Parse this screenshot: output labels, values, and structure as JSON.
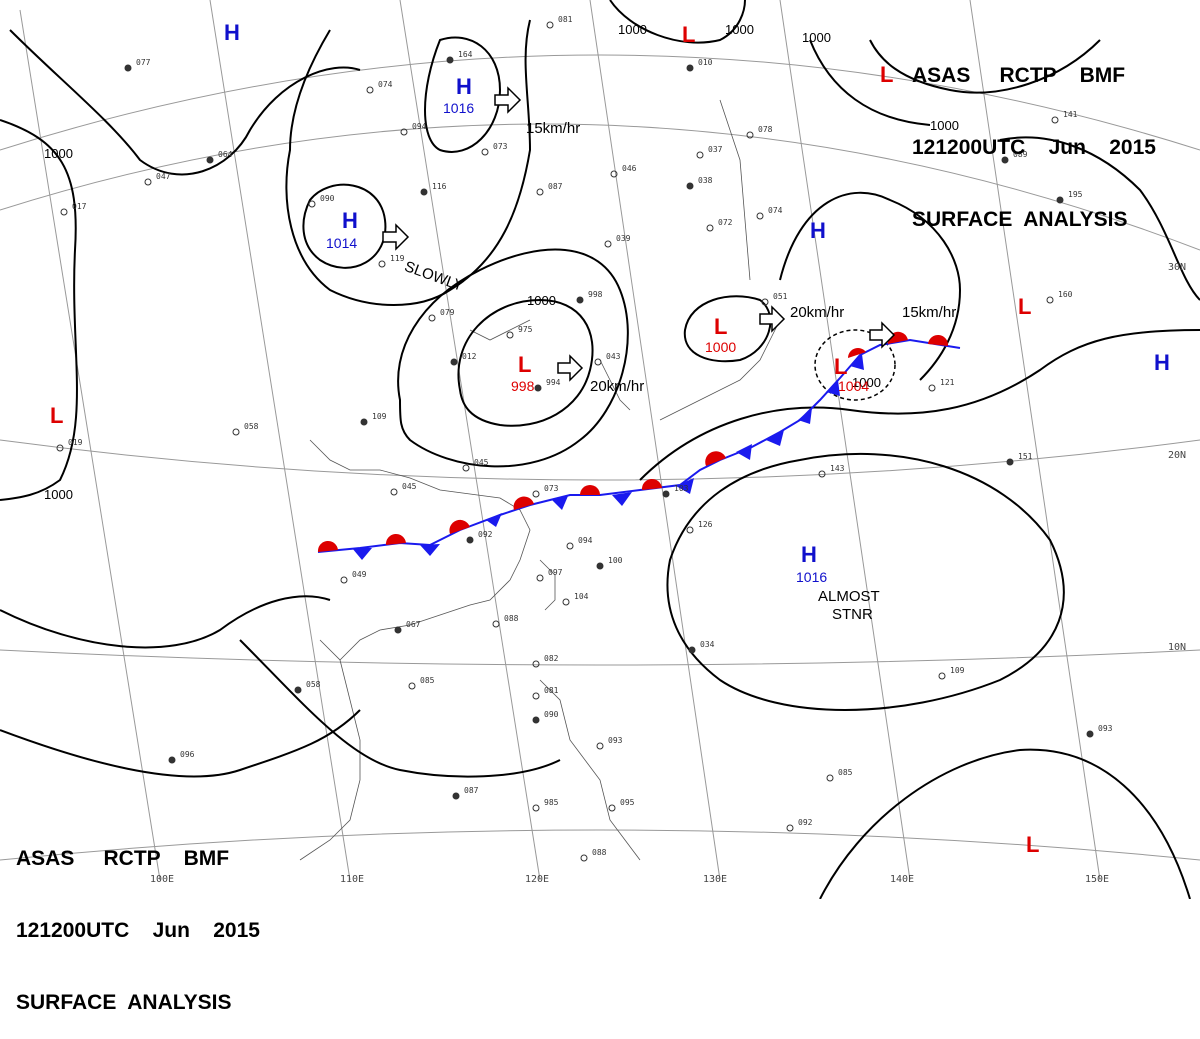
{
  "header_top": {
    "line1": "ASAS     RCTP    BMF",
    "line2": "121200UTC    Jun    2015",
    "line3": "SURFACE  ANALYSIS"
  },
  "header_bottom": {
    "line1": "ASAS     RCTP    BMF",
    "line2": "121200UTC    Jun    2015",
    "line3": "SURFACE  ANALYSIS"
  },
  "colors": {
    "high": "#1010cc",
    "low": "#dd0000",
    "cold_front": "#1a1aee",
    "warm_front": "#dd0000",
    "isobar": "#000000",
    "grid": "#888888",
    "coast": "#555555"
  },
  "pressure_centers": [
    {
      "type": "H",
      "value": ""
    },
    {
      "type": "H",
      "value": "1016"
    },
    {
      "type": "H",
      "value": "1014"
    },
    {
      "type": "L",
      "value": "998"
    },
    {
      "type": "L",
      "value": "1000"
    },
    {
      "type": "L",
      "value": "1004"
    },
    {
      "type": "H",
      "value": "1016"
    },
    {
      "type": "H",
      "value": ""
    },
    {
      "type": "H",
      "value": ""
    },
    {
      "type": "L",
      "value": ""
    },
    {
      "type": "L",
      "value": ""
    },
    {
      "type": "L",
      "value": ""
    },
    {
      "type": "L",
      "value": ""
    },
    {
      "type": "L",
      "value": ""
    }
  ],
  "motions": [
    {
      "text": "15km/hr"
    },
    {
      "text": "SLOWLY"
    },
    {
      "text": "20km/hr"
    },
    {
      "text": "20km/hr"
    },
    {
      "text": "15km/hr"
    },
    {
      "text": "ALMOST"
    },
    {
      "text": "STNR"
    }
  ],
  "isobar_labels": [
    "1000",
    "1000",
    "1000",
    "1000",
    "1000",
    "1000",
    "1000",
    "1000"
  ],
  "longitude_labels": [
    "100E",
    "110E",
    "120E",
    "130E",
    "140E",
    "150E"
  ],
  "latitude_labels": [
    "30N",
    "20N",
    "10N"
  ],
  "stations": [
    "077",
    "074",
    "094",
    "164",
    "073",
    "081",
    "010",
    "078",
    "037",
    "089",
    "141",
    "047",
    "064",
    "017",
    "090",
    "116",
    "087",
    "046",
    "038",
    "072",
    "074",
    "195",
    "119",
    "039",
    "998",
    "051",
    "160",
    "012",
    "079",
    "975",
    "994",
    "043",
    "058",
    "109",
    "045",
    "073",
    "103",
    "143",
    "121",
    "151",
    "045",
    "094",
    "092",
    "126",
    "049",
    "067",
    "097",
    "104",
    "100",
    "088",
    "085",
    "058",
    "082",
    "081",
    "090",
    "093",
    "095",
    "087",
    "085",
    "092",
    "093",
    "088",
    "109",
    "096",
    "985",
    "019",
    "034"
  ]
}
